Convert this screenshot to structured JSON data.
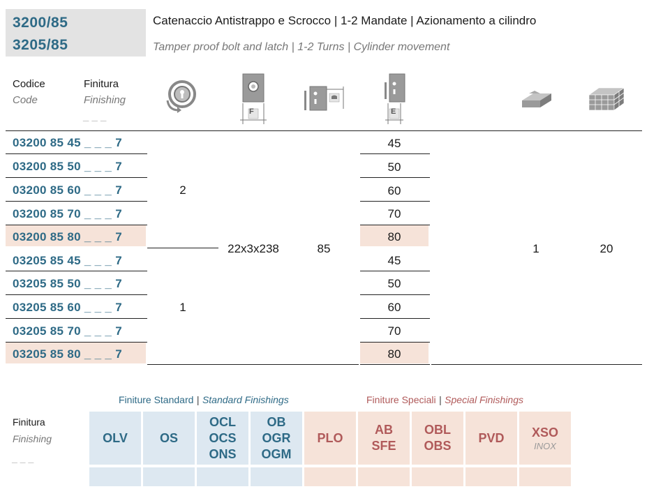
{
  "header": {
    "codes": [
      "3200/85",
      "3205/85"
    ],
    "title_it": "Catenaccio Antistrappo e Scrocco | 1-2 Mandate | Azionamento a cilindro",
    "title_en": "Tamper proof bolt and latch | 1-2 Turns | Cylinder movement"
  },
  "columns": {
    "code_it": "Codice",
    "code_en": "Code",
    "finish_it": "Finitura",
    "finish_en": "Finishing",
    "finish_placeholder": "_ _ _",
    "icon_names": [
      "cylinder-turns-icon",
      "faceplate-width-icon",
      "lock-depth-icon",
      "backset-icon",
      "package-icon",
      "carton-icon"
    ],
    "f_label": "F",
    "e_label": "E"
  },
  "rows": [
    {
      "code": "03200 85 45 _ _ _ 7",
      "backset": "45",
      "highlight": false
    },
    {
      "code": "03200 85 50 _ _ _ 7",
      "backset": "50",
      "highlight": false
    },
    {
      "code": "03200 85 60 _ _ _ 7",
      "backset": "60",
      "highlight": false
    },
    {
      "code": "03200 85 70 _ _ _ 7",
      "backset": "70",
      "highlight": false
    },
    {
      "code": "03200 85 80 _ _ _ 7",
      "backset": "80",
      "highlight": true
    },
    {
      "code": "03205 85 45 _ _ _ 7",
      "backset": "45",
      "highlight": false
    },
    {
      "code": "03205 85 50 _ _ _ 7",
      "backset": "50",
      "highlight": false
    },
    {
      "code": "03205 85 60 _ _ _ 7",
      "backset": "60",
      "highlight": false
    },
    {
      "code": "03205 85 70 _ _ _ 7",
      "backset": "70",
      "highlight": false
    },
    {
      "code": "03205 85 80 _ _ _ 7",
      "backset": "80",
      "highlight": true
    }
  ],
  "groups": {
    "turns_top": "2",
    "turns_bottom": "1",
    "faceplate": "22x3x238",
    "depth": "85",
    "package_qty": "1",
    "carton_qty": "20"
  },
  "finishes": {
    "label_it": "Finitura",
    "label_en": "Finishing",
    "placeholder": "_ _ _",
    "standard_it": "Finiture Standard",
    "standard_en": "Standard Finishings",
    "special_it": "Finiture Speciali",
    "special_en": "Special Finishings",
    "separator": "|",
    "standard_cells": [
      {
        "lines": [
          "OLV"
        ]
      },
      {
        "lines": [
          "OS"
        ]
      },
      {
        "lines": [
          "OCL",
          "OCS",
          "ONS"
        ]
      },
      {
        "lines": [
          "OB",
          "OGR",
          "OGM"
        ]
      }
    ],
    "special_cells": [
      {
        "lines": [
          "PLO"
        ]
      },
      {
        "lines": [
          "AB",
          "SFE"
        ]
      },
      {
        "lines": [
          "OBL",
          "OBS"
        ]
      },
      {
        "lines": [
          "PVD"
        ]
      },
      {
        "lines": [
          "XSO"
        ],
        "sub": "INOX"
      }
    ],
    "colors": {
      "standard": "#dde8f1",
      "special": "#f6e3d9",
      "standard_text": "#2e6a86",
      "special_text": "#b05a5a"
    }
  }
}
